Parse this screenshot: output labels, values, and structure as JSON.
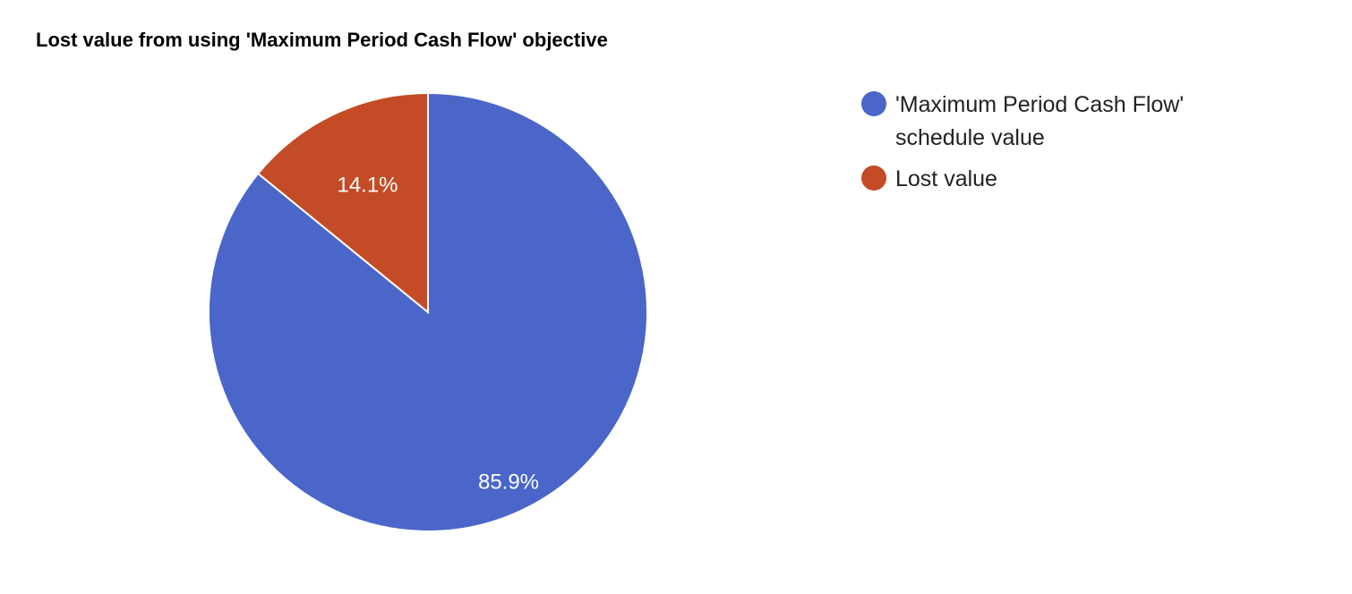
{
  "chart_data": {
    "type": "pie",
    "title": "Lost value from using 'Maximum Period Cash Flow' objective",
    "legend_position": "right",
    "slices": [
      {
        "label": "'Maximum Period Cash Flow' schedule value",
        "legend_lines": [
          "'Maximum Period Cash Flow'",
          "schedule value"
        ],
        "value": 85.9,
        "display": "85.9%",
        "color": "#4a66c8"
      },
      {
        "label": "Lost value",
        "legend_lines": [
          "Lost value"
        ],
        "value": 14.1,
        "display": "14.1%",
        "color": "#c34b26"
      }
    ]
  }
}
